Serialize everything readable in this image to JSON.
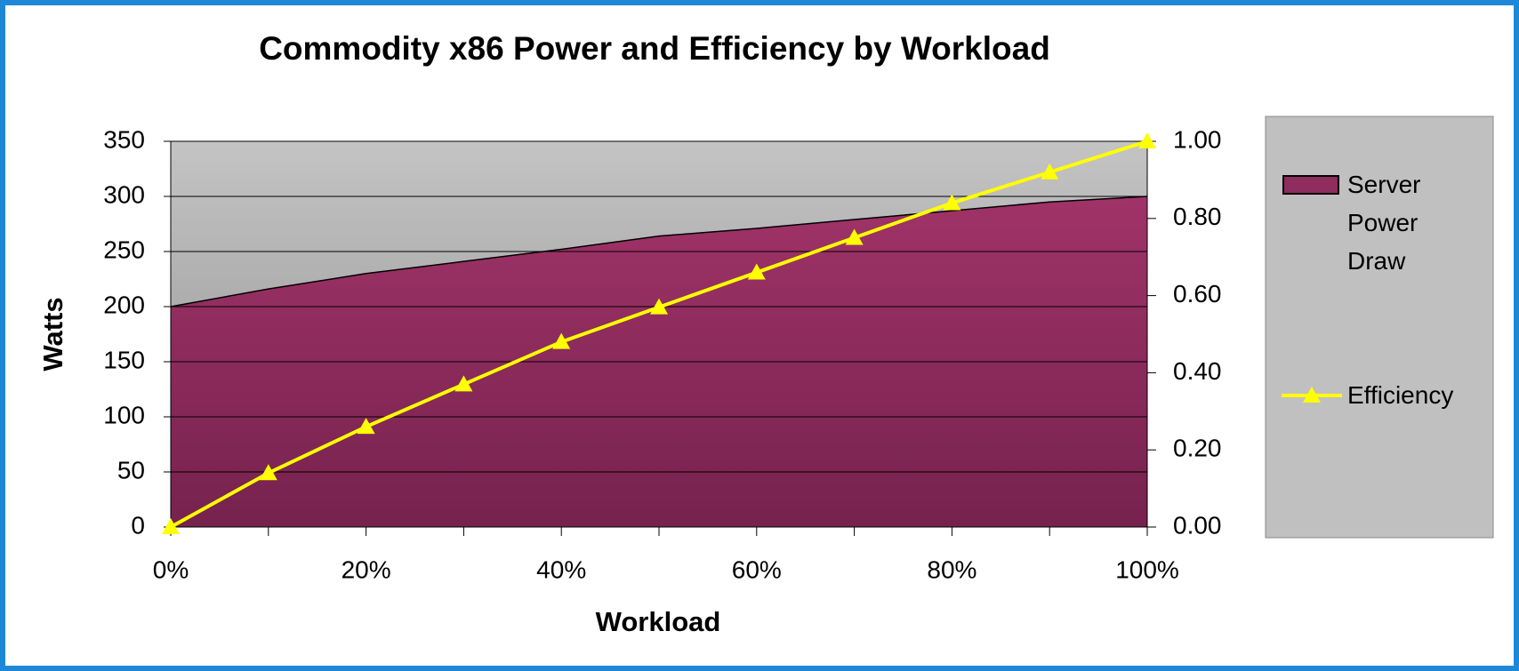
{
  "chart_data": {
    "type": "area-line",
    "title": "Commodity x86 Power and Efficiency by Workload",
    "x_label": "Workload",
    "y_label": "Watts",
    "categories": [
      "0%",
      null,
      "20%",
      null,
      "40%",
      null,
      "60%",
      null,
      "80%",
      null,
      "100%"
    ],
    "series": [
      {
        "name": "Server Power Draw",
        "type": "area",
        "color": "#8e2d5e",
        "values": [
          200,
          216,
          230,
          241,
          252,
          264,
          271,
          279,
          287,
          295,
          300
        ]
      },
      {
        "name": "Efficiency",
        "type": "line",
        "axis": "y2",
        "color": "#ffff00",
        "values": [
          0,
          0.14,
          0.26,
          0.37,
          0.48,
          0.57,
          0.66,
          0.75,
          0.84,
          0.92,
          1.0
        ]
      }
    ],
    "ylim": [
      0,
      350
    ],
    "yticks": [
      0,
      50,
      100,
      150,
      200,
      250,
      300,
      350
    ],
    "y2lim": [
      0,
      1
    ],
    "y2ticks": [
      {
        "value": 0,
        "label": "0.00"
      },
      {
        "value": 0.2,
        "label": "0.20"
      },
      {
        "value": 0.4,
        "label": "0.40"
      },
      {
        "value": 0.6,
        "label": "0.60"
      },
      {
        "value": 0.8,
        "label": "0.80"
      },
      {
        "value": 1,
        "label": "1.00"
      }
    ],
    "grid": true,
    "legend": "right"
  }
}
